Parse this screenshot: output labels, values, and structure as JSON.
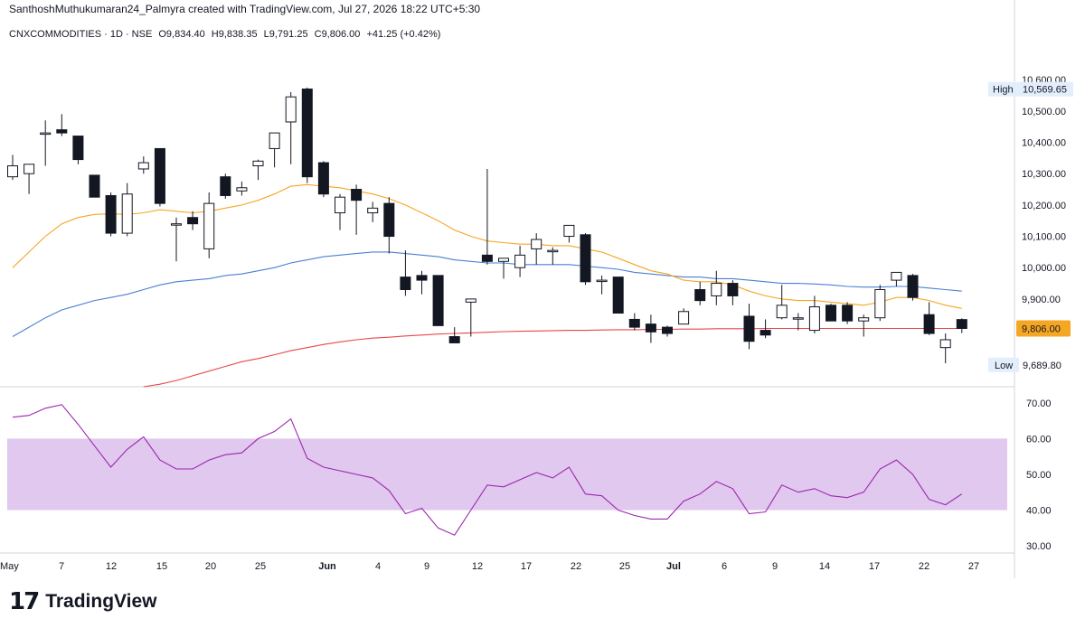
{
  "header": {
    "text": "SanthoshMuthukumaran24_Palmyra created with TradingView.com, Jul 27, 2026 18:22 UTC+5:30"
  },
  "legend": {
    "symbol": "CNXCOMMODITIES · 1D · NSE",
    "open": "O9,834.40",
    "high": "H9,838.35",
    "low": "L9,791.25",
    "close": "C9,806.00",
    "change": "+41.25 (+0.42%)"
  },
  "footer": {
    "logo_mark": "17",
    "brand": "TradingView"
  },
  "colors": {
    "up_body": "#ffffff",
    "down_body": "#131722",
    "wick": "#131722",
    "ema_fast": "#f5a623",
    "ema_mid": "#4a7fd4",
    "ema_slow": "#e8474b",
    "rsi_line": "#9c27b0",
    "rsi_band": "#e1c8ee",
    "grid": "#e0e3eb",
    "price_label_bg": "#f5a623"
  },
  "chart_data": {
    "type": "candlestick",
    "price_axis": {
      "ticks": [
        "10,600.00",
        "10,500.00",
        "10,400.00",
        "10,300.00",
        "10,200.00",
        "10,100.00",
        "10,000.00",
        "9,900.00"
      ],
      "range": [
        9620,
        10710
      ],
      "high_label": "High",
      "high_value": "10,569.65",
      "low_label": "Low",
      "low_value": "9,689.80",
      "last_price": "9,806.00"
    },
    "x_axis_labels": [
      "May",
      "7",
      "12",
      "15",
      "20",
      "25",
      "Jun",
      "4",
      "9",
      "12",
      "17",
      "22",
      "25",
      "Jul",
      "6",
      "9",
      "14",
      "17",
      "22",
      "27"
    ],
    "candles": [
      {
        "o": 10290,
        "h": 10360,
        "l": 10280,
        "c": 10325
      },
      {
        "o": 10300,
        "h": 10330,
        "l": 10235,
        "c": 10330
      },
      {
        "o": 10430,
        "h": 10470,
        "l": 10325,
        "c": 10430
      },
      {
        "o": 10440,
        "h": 10490,
        "l": 10420,
        "c": 10430
      },
      {
        "o": 10420,
        "h": 10420,
        "l": 10330,
        "c": 10345
      },
      {
        "o": 10295,
        "h": 10295,
        "l": 10225,
        "c": 10225
      },
      {
        "o": 10230,
        "h": 10240,
        "l": 10100,
        "c": 10110
      },
      {
        "o": 10110,
        "h": 10270,
        "l": 10100,
        "c": 10235
      },
      {
        "o": 10315,
        "h": 10355,
        "l": 10300,
        "c": 10335
      },
      {
        "o": 10380,
        "h": 10380,
        "l": 10195,
        "c": 10205
      },
      {
        "o": 10140,
        "h": 10160,
        "l": 10020,
        "c": 10140
      },
      {
        "o": 10160,
        "h": 10180,
        "l": 10120,
        "c": 10140
      },
      {
        "o": 10060,
        "h": 10240,
        "l": 10030,
        "c": 10205
      },
      {
        "o": 10290,
        "h": 10300,
        "l": 10220,
        "c": 10230
      },
      {
        "o": 10245,
        "h": 10275,
        "l": 10230,
        "c": 10255
      },
      {
        "o": 10325,
        "h": 10345,
        "l": 10280,
        "c": 10340
      },
      {
        "o": 10380,
        "h": 10430,
        "l": 10320,
        "c": 10430
      },
      {
        "o": 10465,
        "h": 10560,
        "l": 10330,
        "c": 10545
      },
      {
        "o": 10570,
        "h": 10575,
        "l": 10270,
        "c": 10290
      },
      {
        "o": 10335,
        "h": 10340,
        "l": 10225,
        "c": 10235
      },
      {
        "o": 10175,
        "h": 10235,
        "l": 10120,
        "c": 10225
      },
      {
        "o": 10250,
        "h": 10265,
        "l": 10105,
        "c": 10215
      },
      {
        "o": 10175,
        "h": 10210,
        "l": 10145,
        "c": 10190
      },
      {
        "o": 10205,
        "h": 10225,
        "l": 10045,
        "c": 10100
      },
      {
        "o": 9970,
        "h": 10055,
        "l": 9910,
        "c": 9930
      },
      {
        "o": 9975,
        "h": 9990,
        "l": 9915,
        "c": 9960
      },
      {
        "o": 9975,
        "h": 9975,
        "l": 9815,
        "c": 9815
      },
      {
        "o": 9780,
        "h": 9810,
        "l": 9760,
        "c": 9760
      },
      {
        "o": 9890,
        "h": 9900,
        "l": 9780,
        "c": 9900
      },
      {
        "o": 10040,
        "h": 10315,
        "l": 10010,
        "c": 10020
      },
      {
        "o": 10020,
        "h": 10030,
        "l": 9965,
        "c": 10030
      },
      {
        "o": 10000,
        "h": 10070,
        "l": 9970,
        "c": 10040
      },
      {
        "o": 10060,
        "h": 10110,
        "l": 10010,
        "c": 10090
      },
      {
        "o": 10055,
        "h": 10065,
        "l": 10010,
        "c": 10055
      },
      {
        "o": 10100,
        "h": 10135,
        "l": 10080,
        "c": 10135
      },
      {
        "o": 10105,
        "h": 10110,
        "l": 9945,
        "c": 9955
      },
      {
        "o": 9960,
        "h": 9975,
        "l": 9915,
        "c": 9960
      },
      {
        "o": 9970,
        "h": 9970,
        "l": 9855,
        "c": 9855
      },
      {
        "o": 9835,
        "h": 9855,
        "l": 9800,
        "c": 9810
      },
      {
        "o": 9820,
        "h": 9850,
        "l": 9760,
        "c": 9795
      },
      {
        "o": 9810,
        "h": 9815,
        "l": 9780,
        "c": 9790
      },
      {
        "o": 9820,
        "h": 9870,
        "l": 9820,
        "c": 9860
      },
      {
        "o": 9930,
        "h": 9955,
        "l": 9880,
        "c": 9895
      },
      {
        "o": 9910,
        "h": 9990,
        "l": 9880,
        "c": 9950
      },
      {
        "o": 9950,
        "h": 9960,
        "l": 9880,
        "c": 9910
      },
      {
        "o": 9845,
        "h": 9885,
        "l": 9740,
        "c": 9765
      },
      {
        "o": 9800,
        "h": 9835,
        "l": 9775,
        "c": 9785
      },
      {
        "o": 9840,
        "h": 9945,
        "l": 9835,
        "c": 9880
      },
      {
        "o": 9840,
        "h": 9855,
        "l": 9800,
        "c": 9840
      },
      {
        "o": 9800,
        "h": 9910,
        "l": 9790,
        "c": 9875
      },
      {
        "o": 9880,
        "h": 9885,
        "l": 9830,
        "c": 9830
      },
      {
        "o": 9880,
        "h": 9890,
        "l": 9820,
        "c": 9830
      },
      {
        "o": 9830,
        "h": 9850,
        "l": 9780,
        "c": 9840
      },
      {
        "o": 9840,
        "h": 9945,
        "l": 9830,
        "c": 9930
      },
      {
        "o": 9960,
        "h": 9985,
        "l": 9940,
        "c": 9985
      },
      {
        "o": 9975,
        "h": 9980,
        "l": 9895,
        "c": 9905
      },
      {
        "o": 9850,
        "h": 9890,
        "l": 9785,
        "c": 9790
      },
      {
        "o": 9745,
        "h": 9790,
        "l": 9695,
        "c": 9770
      },
      {
        "o": 9834.4,
        "h": 9838.35,
        "l": 9791.25,
        "c": 9806
      }
    ],
    "ema_fast": [
      10000,
      10050,
      10100,
      10140,
      10160,
      10170,
      10172,
      10170,
      10175,
      10185,
      10180,
      10175,
      10180,
      10190,
      10200,
      10215,
      10235,
      10260,
      10265,
      10260,
      10255,
      10245,
      10235,
      10220,
      10200,
      10175,
      10150,
      10120,
      10100,
      10085,
      10080,
      10075,
      10075,
      10070,
      10070,
      10060,
      10050,
      10030,
      10010,
      9990,
      9980,
      9960,
      9955,
      9955,
      9945,
      9925,
      9910,
      9900,
      9895,
      9895,
      9890,
      9885,
      9880,
      9890,
      9905,
      9905,
      9895,
      9880,
      9870
    ],
    "ema_mid": [
      9780,
      9810,
      9840,
      9865,
      9880,
      9895,
      9905,
      9915,
      9930,
      9945,
      9955,
      9960,
      9965,
      9975,
      9980,
      9990,
      10000,
      10015,
      10025,
      10035,
      10040,
      10045,
      10050,
      10050,
      10045,
      10040,
      10035,
      10025,
      10020,
      10015,
      10015,
      10010,
      10010,
      10010,
      10010,
      10005,
      10000,
      9995,
      9985,
      9980,
      9975,
      9970,
      9970,
      9965,
      9965,
      9960,
      9955,
      9950,
      9950,
      9948,
      9945,
      9940,
      9938,
      9938,
      9940,
      9940,
      9935,
      9930,
      9925
    ],
    "ema_slow": [
      9620,
      9628,
      9640,
      9655,
      9670,
      9685,
      9700,
      9710,
      9722,
      9735,
      9745,
      9755,
      9763,
      9770,
      9775,
      9778,
      9782,
      9785,
      9788,
      9790,
      9792,
      9794,
      9796,
      9797,
      9798,
      9799,
      9800,
      9800,
      9801,
      9802,
      9802,
      9803,
      9803,
      9804,
      9804,
      9805,
      9805,
      9805,
      9806,
      9806,
      9806,
      9806,
      9806,
      9806,
      9806,
      9806,
      9806,
      9806,
      9806,
      9806,
      9806
    ],
    "rsi": {
      "ticks": [
        "70.00",
        "60.00",
        "50.00",
        "40.00",
        "30.00"
      ],
      "range": [
        28,
        74
      ],
      "band": [
        40,
        60
      ],
      "values": [
        66,
        66.5,
        68.5,
        69.5,
        64,
        58,
        52,
        57,
        60.5,
        54,
        51.5,
        51.5,
        54,
        55.5,
        56,
        60,
        62,
        65.5,
        54.5,
        52,
        51,
        50,
        49,
        45.5,
        39,
        40.5,
        35,
        33,
        40,
        47,
        46.5,
        48.5,
        50.5,
        49,
        52,
        44.5,
        44,
        40,
        38.5,
        37.5,
        37.5,
        42.5,
        44.5,
        48,
        46,
        39,
        39.5,
        47,
        45,
        46,
        44,
        43.5,
        45,
        51.5,
        54,
        50,
        43,
        41.5,
        44.5
      ]
    }
  }
}
